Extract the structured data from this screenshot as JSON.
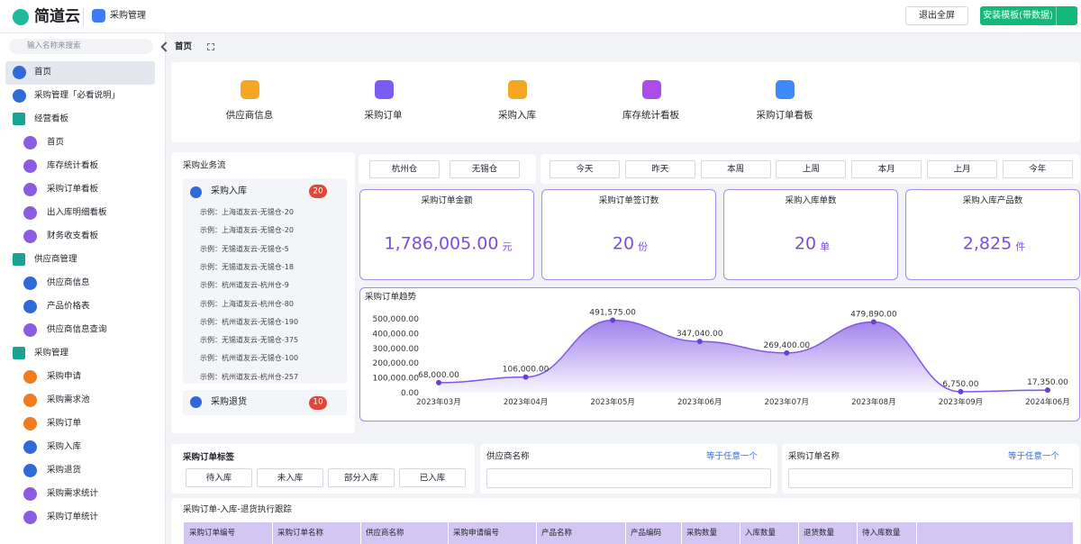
{
  "header": {
    "logo": "简道云",
    "app_name": "采购管理",
    "exit_fullscreen": "退出全屏",
    "install_template": "安装模板(带数据)"
  },
  "sidebar": {
    "search_placeholder": "输入名称来搜索",
    "items": [
      {
        "label": "首页"
      },
      {
        "label": "采购管理「必看说明」"
      },
      {
        "label": "经营看板",
        "children": [
          "首页",
          "库存统计看板",
          "采购订单看板",
          "出入库明细看板",
          "财务收支看板"
        ]
      },
      {
        "label": "供应商管理",
        "children": [
          "供应商信息",
          "产品价格表",
          "供应商信息查询"
        ]
      },
      {
        "label": "采购管理",
        "children": [
          "采购申请",
          "采购需求池",
          "采购订单",
          "采购入库",
          "采购退货",
          "采购需求统计",
          "采购订单统计"
        ]
      }
    ]
  },
  "breadcrumb": "首页",
  "shortcuts": [
    "供应商信息",
    "采购订单",
    "采购入库",
    "库存统计看板",
    "采购订单看板"
  ],
  "flow": {
    "title": "采购业务流",
    "steps": [
      {
        "label": "采购入库",
        "count": 20,
        "records": [
          "示例：上海道友云-无锡仓-20",
          "示例：上海道友云-无锡仓-20",
          "示例：无锡道友云-无锡仓-5",
          "示例：无锡道友云-无锡仓-18",
          "示例：杭州道友云-杭州仓-9",
          "示例：上海道友云-杭州仓-80",
          "示例：杭州道友云-无锡仓-190",
          "示例：无锡道友云-无锡仓-375",
          "示例：杭州道友云-无锡仓-100",
          "示例：杭州道友云-杭州仓-257"
        ]
      },
      {
        "label": "采购退货",
        "count": 10
      }
    ]
  },
  "warehouses": [
    "杭州仓",
    "无锡仓"
  ],
  "periods": [
    "今天",
    "昨天",
    "本周",
    "上周",
    "本月",
    "上月",
    "今年"
  ],
  "kpis": [
    {
      "label": "采购订单金额",
      "value": "1,786,005.00",
      "unit": "元"
    },
    {
      "label": "采购订单签订数",
      "value": "20",
      "unit": "份"
    },
    {
      "label": "采购入库单数",
      "value": "20",
      "unit": "单"
    },
    {
      "label": "采购入库产品数",
      "value": "2,825",
      "unit": "件"
    }
  ],
  "chart_data": {
    "type": "area",
    "title": "采购订单趋势",
    "categories": [
      "2023年03月",
      "2023年04月",
      "2023年05月",
      "2023年06月",
      "2023年07月",
      "2023年08月",
      "2023年09月",
      "2024年06月"
    ],
    "values": [
      68000,
      106000,
      491575,
      347040,
      269400,
      479890,
      6750,
      17350
    ],
    "value_labels": [
      "68,000.00",
      "106,000.00",
      "491,575.00",
      "347,040.00",
      "269,400.00",
      "479,890.00",
      "6,750.00",
      "17,350.00"
    ],
    "ylim": [
      0,
      580000
    ],
    "yticks": [
      {
        "value": 0,
        "label": "0.00"
      },
      {
        "value": 100000,
        "label": "100,000.00"
      },
      {
        "value": 200000,
        "label": "200,000.00"
      },
      {
        "value": 300000,
        "label": "300,000.00"
      },
      {
        "value": 400000,
        "label": "400,000.00"
      },
      {
        "value": 500000,
        "label": "500,000.00"
      }
    ],
    "color": "#8257e6"
  },
  "tag_filter": {
    "title": "采购订单标签",
    "options": [
      "待入库",
      "未入库",
      "部分入库",
      "已入库"
    ]
  },
  "field_filters": [
    {
      "label": "供应商名称",
      "operator": "等于任意一个"
    },
    {
      "label": "采购订单名称",
      "operator": "等于任意一个"
    }
  ],
  "table": {
    "title": "采购订单-入库-退货执行跟踪",
    "columns": [
      "采购订单编号",
      "采购订单名称",
      "供应商名称",
      "采购申请编号",
      "产品名称",
      "产品编码",
      "采购数量",
      "入库数量",
      "退货数量",
      "待入库数量"
    ]
  }
}
